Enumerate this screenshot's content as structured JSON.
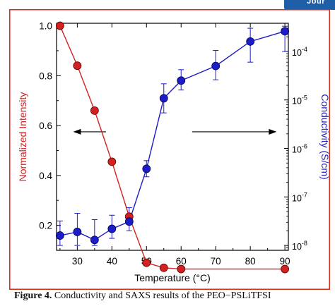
{
  "header": {
    "tag_text": "Jour"
  },
  "figure": {
    "caption_label": "Figure 4.",
    "caption_text": "Conductivity and SAXS results of the PEO−PSLiTFSI"
  },
  "chart_data": {
    "type": "line",
    "xlabel": "Temperature (°C)",
    "ylabel_left": "Normalized Intensity",
    "ylabel_right": "Conductivity (S/cm)",
    "xlim": [
      24,
      91
    ],
    "ylim_left": [
      0.1,
      1.01
    ],
    "ylim_right_log10": [
      -8.1,
      -3.42
    ],
    "x_ticks": [
      30,
      40,
      50,
      60,
      70,
      80,
      90
    ],
    "y_left_ticks": [
      0.2,
      0.4,
      0.6,
      0.8,
      1.0
    ],
    "y_left_tick_labels": [
      "0.2",
      "0.4",
      "0.6",
      "0.8",
      "1.0"
    ],
    "y_right_ticks_log10": [
      -8,
      -7,
      -6,
      -5,
      -4
    ],
    "y_right_tick_labels": [
      {
        "base": "10",
        "exp": "-8"
      },
      {
        "base": "10",
        "exp": "-7"
      },
      {
        "base": "10",
        "exp": "-6"
      },
      {
        "base": "10",
        "exp": "-5"
      },
      {
        "base": "10",
        "exp": "-4"
      }
    ],
    "grid": false,
    "series": [
      {
        "axis": "left",
        "color": "#d42020",
        "x": [
          25,
          30,
          35,
          40,
          45,
          50,
          55,
          60,
          90
        ],
        "y": [
          1.0,
          0.84,
          0.66,
          0.455,
          0.235,
          0.05,
          0.03,
          0.025,
          0.025
        ]
      },
      {
        "axis": "right",
        "color": "#1c1cc8",
        "x": [
          25,
          30,
          35,
          40,
          45,
          50,
          55,
          60,
          70,
          80,
          90
        ],
        "y": [
          1.6e-08,
          1.9e-08,
          1.3e-08,
          2.2e-08,
          3.1e-08,
          3.8e-07,
          1.08e-05,
          2.5e-05,
          5e-05,
          0.00016,
          0.00026
        ],
        "error_upper": [
          3.2e-08,
          4.6e-08,
          3.4e-08,
          4.2e-08,
          6e-08,
          5.6e-07,
          2.15e-05,
          4.2e-05,
          0.000105,
          0.0003,
          0.00033
        ],
        "error_lower": [
          1e-08,
          1e-08,
          1e-08,
          1.4e-08,
          2e-08,
          2.6e-07,
          5.4e-06,
          1.6e-05,
          2.6e-05,
          6e-05,
          0.0001
        ]
      }
    ],
    "annotations": [
      {
        "type": "arrow",
        "direction": "left",
        "from_x": 38.3,
        "to_x": 28.8,
        "y_left": 0.575
      },
      {
        "type": "arrow",
        "direction": "right",
        "from_x": 63.2,
        "to_x": 87.6,
        "y_left": 0.575
      }
    ]
  }
}
